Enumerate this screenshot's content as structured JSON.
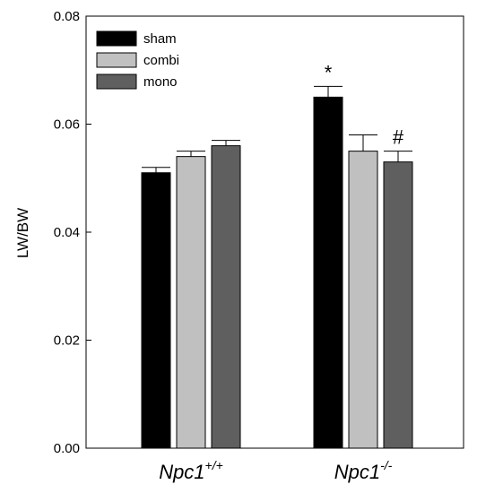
{
  "chart_data": {
    "type": "bar",
    "title": "",
    "xlabel": "",
    "ylabel": "LW/BW",
    "ylim": [
      0,
      0.08
    ],
    "yticks": [
      "0.00",
      "0.02",
      "0.04",
      "0.06",
      "0.08"
    ],
    "ytick_values": [
      0,
      0.02,
      0.04,
      0.06,
      0.08
    ],
    "grid": false,
    "legend_position": "top-left",
    "categories": [
      {
        "base": "Npc1",
        "sup": "+/+"
      },
      {
        "base": "Npc1",
        "sup": "-/-"
      }
    ],
    "series": [
      {
        "name": "sham",
        "color": "#000000",
        "values": [
          0.051,
          0.065
        ],
        "errors": [
          0.001,
          0.002
        ]
      },
      {
        "name": "combi",
        "color": "#c0c0c0",
        "values": [
          0.054,
          0.055
        ],
        "errors": [
          0.001,
          0.003
        ]
      },
      {
        "name": "mono",
        "color": "#5f5f5f",
        "values": [
          0.056,
          0.053
        ],
        "errors": [
          0.001,
          0.002
        ]
      }
    ],
    "annotations": [
      {
        "text": "*",
        "category_index": 1,
        "series_index": 0
      },
      {
        "text": "#",
        "category_index": 1,
        "series_index": 2
      }
    ]
  }
}
